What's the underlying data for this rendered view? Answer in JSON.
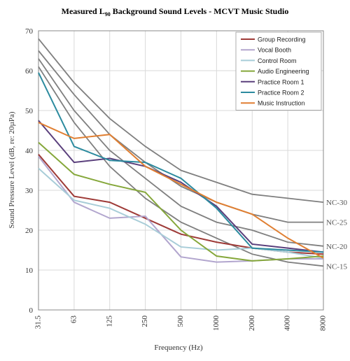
{
  "chart_data": {
    "type": "line",
    "title_prefix": "Measured L",
    "title_subscript": "90",
    "title_suffix": " Background Sound Levels - MCVT Music Studio",
    "xlabel": "Frequency (Hz)",
    "ylabel": "Sound Pressure Level (dB, re: 20µPa)",
    "categories": [
      "31.5",
      "63",
      "125",
      "250",
      "500",
      "1000",
      "2000",
      "4000",
      "8000"
    ],
    "ylim": [
      0,
      70
    ],
    "yticks": [
      "0",
      "10",
      "20",
      "30",
      "40",
      "50",
      "60",
      "70"
    ],
    "grid": true,
    "legend_position": "top-right",
    "series": [
      {
        "name": "Group Recording",
        "color": "#9e3a37",
        "values": [
          39,
          28.5,
          27,
          23,
          19,
          17,
          15.5,
          14.5,
          14
        ]
      },
      {
        "name": "Vocal Booth",
        "color": "#b2a6ce",
        "values": [
          38.5,
          27,
          23,
          23.5,
          13.3,
          12,
          12.3,
          12.8,
          12.8
        ]
      },
      {
        "name": "Control Room",
        "color": "#a8cdd8",
        "values": [
          35.5,
          27.5,
          25.5,
          21.5,
          15.8,
          15,
          15.5,
          14.5,
          13
        ]
      },
      {
        "name": "Audio Engineering",
        "color": "#85a73a",
        "values": [
          42,
          34,
          31.5,
          29.5,
          20,
          13.5,
          12.3,
          12.8,
          13.5
        ]
      },
      {
        "name": "Practice Room 1",
        "color": "#5a3f7c",
        "values": [
          47.5,
          37,
          38,
          36,
          32,
          26,
          16.5,
          15.5,
          14.5
        ]
      },
      {
        "name": "Practice Room 2",
        "color": "#2c8b9f",
        "values": [
          59.5,
          41,
          37.5,
          37,
          33,
          25.5,
          15.5,
          15,
          14.5
        ]
      },
      {
        "name": "Music Instruction",
        "color": "#e07f32",
        "values": [
          47,
          43,
          44,
          36,
          31.5,
          27,
          24,
          18,
          13
        ]
      }
    ],
    "reference_curves": [
      {
        "label": "NC-30",
        "color": "#7f7f7f",
        "values": [
          68,
          57,
          48,
          41,
          35,
          32,
          29,
          28,
          27
        ]
      },
      {
        "label": "NC-25",
        "color": "#7f7f7f",
        "values": [
          65,
          54,
          44,
          37,
          31,
          27,
          24,
          22,
          22
        ]
      },
      {
        "label": "NC-20",
        "color": "#7f7f7f",
        "values": [
          63,
          50,
          40,
          33,
          26,
          22,
          20,
          17,
          16
        ]
      },
      {
        "label": "NC-15",
        "color": "#7f7f7f",
        "values": [
          61,
          47,
          36,
          28,
          22,
          18,
          14,
          12,
          11
        ]
      }
    ]
  }
}
